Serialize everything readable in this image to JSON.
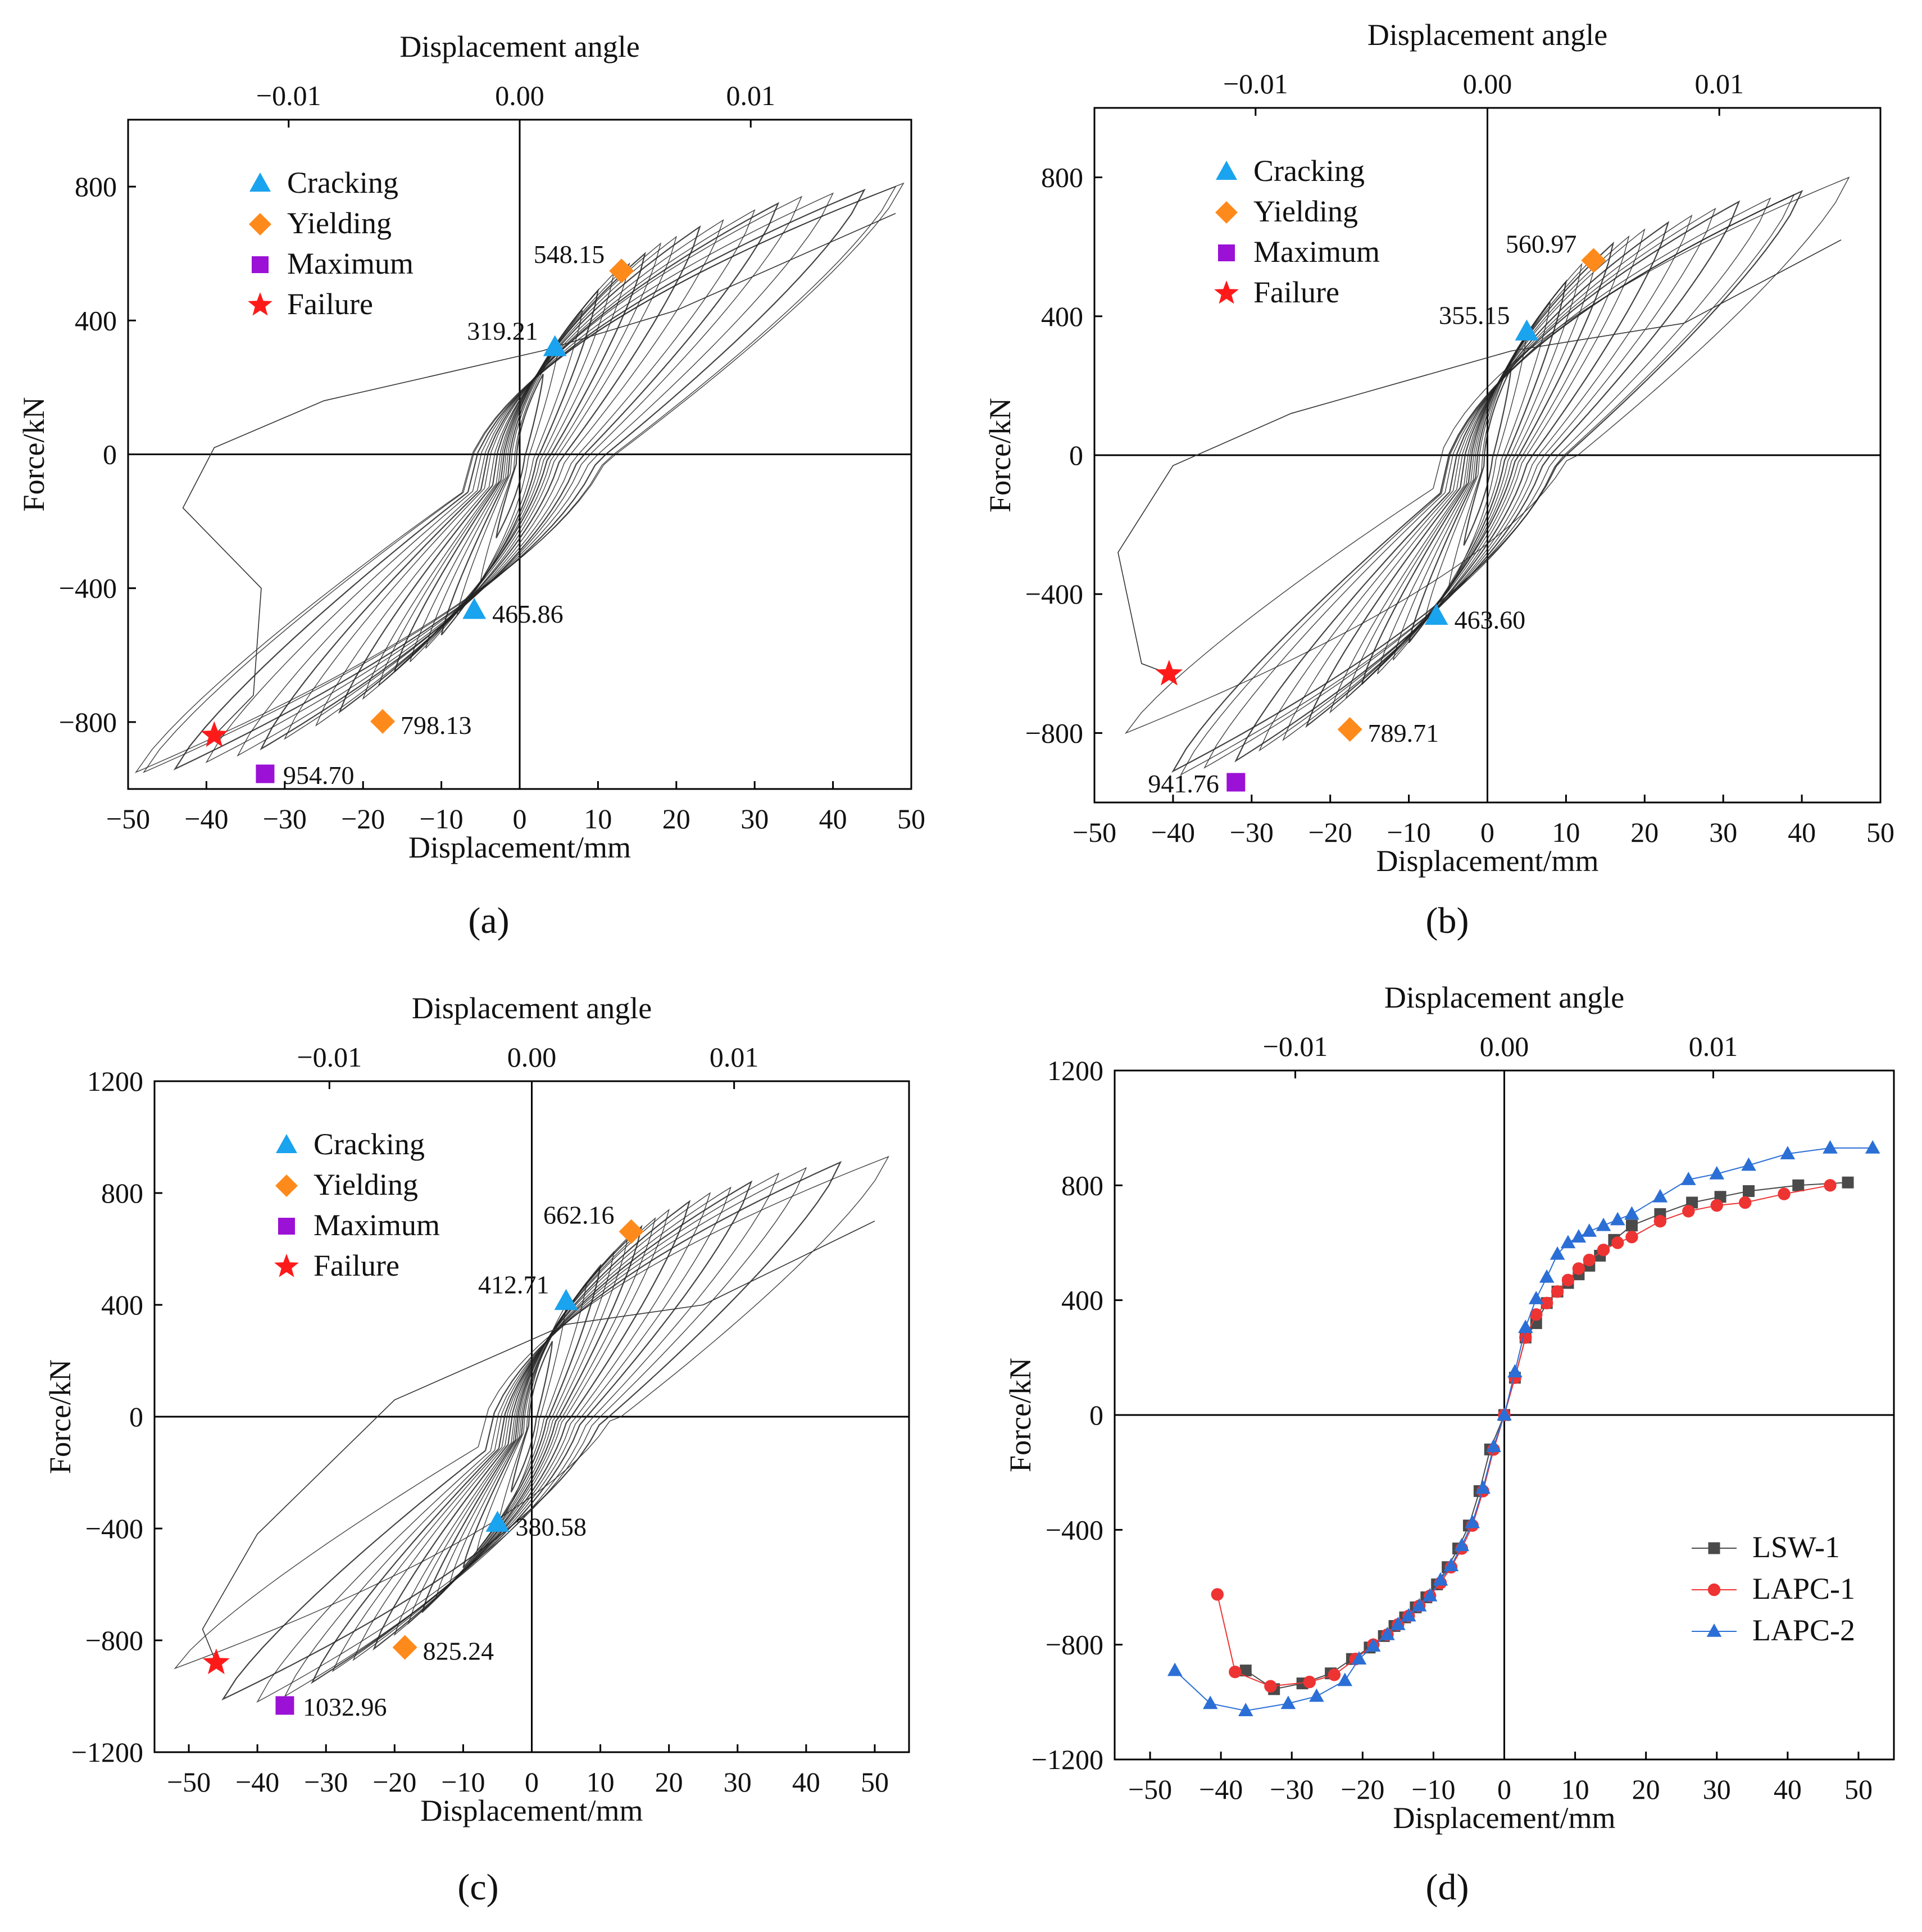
{
  "figure": {
    "panels": [
      "a",
      "b",
      "c",
      "d"
    ]
  },
  "chart_data": [
    {
      "id": "a",
      "type": "line",
      "caption": "(a)",
      "xlabel": "Displacement/mm",
      "ylabel": "Force/kN",
      "top_axis_label": "Displacement angle",
      "top_ticks": [
        "−0.01",
        "0.00",
        "0.01"
      ],
      "top_tick_values": [
        -0.01,
        0.0,
        0.01
      ],
      "xlim": [
        -50,
        50
      ],
      "ylim": [
        -1000,
        1000
      ],
      "xticks": [
        -50,
        -40,
        -30,
        -20,
        -10,
        0,
        10,
        20,
        30,
        40,
        50
      ],
      "yticks": [
        -800,
        -400,
        0,
        400,
        800
      ],
      "xtick_labels": [
        "−50",
        "−40",
        "−30",
        "−20",
        "−10",
        "0",
        "10",
        "20",
        "30",
        "40",
        "50"
      ],
      "ytick_labels": [
        "−800",
        "−400",
        "0",
        "400",
        "800"
      ],
      "legend": [
        "Cracking",
        "Yielding",
        "Maximum",
        "Failure"
      ],
      "loops": [
        {
          "d": 3,
          "fp": 240,
          "fn": 250
        },
        {
          "d": 5,
          "fp": 330,
          "fn": 380
        },
        {
          "d": 8,
          "fp": 430,
          "fn": 480
        },
        {
          "d": 10,
          "fp": 490,
          "fn": 540
        },
        {
          "d": 12,
          "fp": 540,
          "fn": 580
        },
        {
          "d": 14,
          "fp": 570,
          "fn": 620
        },
        {
          "d": 16,
          "fp": 600,
          "fn": 650
        },
        {
          "d": 18,
          "fp": 630,
          "fn": 690
        },
        {
          "d": 20,
          "fp": 650,
          "fn": 730
        },
        {
          "d": 23,
          "fp": 680,
          "fn": 770
        },
        {
          "d": 26,
          "fp": 700,
          "fn": 810
        },
        {
          "d": 30,
          "fp": 730,
          "fn": 850
        },
        {
          "d": 33,
          "fp": 750,
          "fn": 880
        },
        {
          "d": 36,
          "fp": 770,
          "fn": 900
        },
        {
          "d": 40,
          "fp": 780,
          "fn": 920
        },
        {
          "d": 44,
          "fp": 790,
          "fn": 940
        },
        {
          "d": 48,
          "fp": 800,
          "fn": 950
        },
        {
          "d": 49,
          "fp": 810,
          "fn": 950
        }
      ],
      "final_branch": [
        [
          48,
          720
        ],
        [
          20,
          430
        ],
        [
          3,
          310
        ],
        [
          -25,
          160
        ],
        [
          -39,
          20
        ],
        [
          -43,
          -160
        ],
        [
          -33,
          -400
        ],
        [
          -34,
          -720
        ],
        [
          -39,
          -840
        ]
      ],
      "markers": [
        {
          "kind": "cracking",
          "x": 4.5,
          "y": 319.21,
          "label": "319.21",
          "anchor": "end"
        },
        {
          "kind": "yielding",
          "x": 13,
          "y": 548.15,
          "label": "548.15",
          "anchor": "end"
        },
        {
          "kind": "cracking",
          "x": -5.8,
          "y": -465.86,
          "label": "465.86",
          "anchor": "start"
        },
        {
          "kind": "yielding",
          "x": -17.5,
          "y": -798.13,
          "label": "798.13",
          "anchor": "start"
        },
        {
          "kind": "maximum",
          "x": -32.5,
          "y": -954.7,
          "label": "954.70",
          "anchor": "start"
        },
        {
          "kind": "failure",
          "x": -39,
          "y": -840,
          "label": "",
          "anchor": "start"
        }
      ]
    },
    {
      "id": "b",
      "type": "line",
      "caption": "(b)",
      "xlabel": "Displacement/mm",
      "ylabel": "Force/kN",
      "top_axis_label": "Displacement angle",
      "top_ticks": [
        "−0.01",
        "0.00",
        "0.01"
      ],
      "top_tick_values": [
        -0.01,
        0.0,
        0.01
      ],
      "xlim": [
        -50,
        50
      ],
      "ylim": [
        -1000,
        1000
      ],
      "xticks": [
        -50,
        -40,
        -30,
        -20,
        -10,
        0,
        10,
        20,
        30,
        40,
        50
      ],
      "yticks": [
        -800,
        -400,
        0,
        400,
        800
      ],
      "xtick_labels": [
        "−50",
        "−40",
        "−30",
        "−20",
        "−10",
        "0",
        "10",
        "20",
        "30",
        "40",
        "50"
      ],
      "ytick_labels": [
        "−800",
        "−400",
        "0",
        "400",
        "800"
      ],
      "legend": [
        "Cracking",
        "Yielding",
        "Maximum",
        "Failure"
      ],
      "loops": [
        {
          "d": 3,
          "fp": 250,
          "fn": 260
        },
        {
          "d": 5,
          "fp": 350,
          "fn": 390
        },
        {
          "d": 8,
          "fp": 440,
          "fn": 480
        },
        {
          "d": 10,
          "fp": 500,
          "fn": 540
        },
        {
          "d": 12,
          "fp": 550,
          "fn": 590
        },
        {
          "d": 14,
          "fp": 580,
          "fn": 630
        },
        {
          "d": 16,
          "fp": 610,
          "fn": 660
        },
        {
          "d": 18,
          "fp": 630,
          "fn": 700
        },
        {
          "d": 20,
          "fp": 650,
          "fn": 740
        },
        {
          "d": 23,
          "fp": 670,
          "fn": 780
        },
        {
          "d": 26,
          "fp": 690,
          "fn": 820
        },
        {
          "d": 29,
          "fp": 710,
          "fn": 850
        },
        {
          "d": 32,
          "fp": 730,
          "fn": 880
        },
        {
          "d": 36,
          "fp": 740,
          "fn": 900
        },
        {
          "d": 39,
          "fp": 750,
          "fn": 920
        },
        {
          "d": 40,
          "fp": 760,
          "fn": 910
        },
        {
          "d": 46,
          "fp": 800,
          "fn": 800
        }
      ],
      "final_branch": [
        [
          45,
          620
        ],
        [
          25,
          380
        ],
        [
          3,
          300
        ],
        [
          -25,
          120
        ],
        [
          -40,
          -30
        ],
        [
          -47,
          -280
        ],
        [
          -44,
          -600
        ],
        [
          -40.5,
          -630
        ]
      ],
      "markers": [
        {
          "kind": "cracking",
          "x": 5,
          "y": 355.15,
          "label": "355.15",
          "anchor": "end"
        },
        {
          "kind": "yielding",
          "x": 13.5,
          "y": 560.97,
          "label": "560.97",
          "anchor": "end"
        },
        {
          "kind": "cracking",
          "x": -6.5,
          "y": -463.6,
          "label": "463.60",
          "anchor": "start"
        },
        {
          "kind": "yielding",
          "x": -17.5,
          "y": -789.71,
          "label": "789.71",
          "anchor": "start"
        },
        {
          "kind": "maximum",
          "x": -32,
          "y": -941.76,
          "label": "941.76",
          "anchor": "end"
        },
        {
          "kind": "failure",
          "x": -40.5,
          "y": -630,
          "label": "",
          "anchor": "start"
        }
      ]
    },
    {
      "id": "c",
      "type": "line",
      "caption": "(c)",
      "xlabel": "Displacement/mm",
      "ylabel": "Force/kN",
      "top_axis_label": "Displacement angle",
      "top_ticks": [
        "−0.01",
        "0.00",
        "0.01"
      ],
      "top_tick_values": [
        -0.01,
        0.0,
        0.01
      ],
      "xlim": [
        -55,
        55
      ],
      "ylim": [
        -1200,
        1200
      ],
      "xticks": [
        -50,
        -40,
        -30,
        -20,
        -10,
        0,
        10,
        20,
        30,
        40,
        50
      ],
      "yticks": [
        -1200,
        -800,
        -400,
        0,
        400,
        800,
        1200
      ],
      "xtick_labels": [
        "−50",
        "−40",
        "−30",
        "−20",
        "−10",
        "0",
        "10",
        "20",
        "30",
        "40",
        "50"
      ],
      "ytick_labels": [
        "−1200",
        "−800",
        "−400",
        "0",
        "400",
        "800",
        "1200"
      ],
      "legend": [
        "Cracking",
        "Yielding",
        "Maximum",
        "Failure"
      ],
      "loops": [
        {
          "d": 3,
          "fp": 270,
          "fn": 270
        },
        {
          "d": 5,
          "fp": 400,
          "fn": 400
        },
        {
          "d": 8,
          "fp": 480,
          "fn": 480
        },
        {
          "d": 10,
          "fp": 540,
          "fn": 540
        },
        {
          "d": 12,
          "fp": 590,
          "fn": 600
        },
        {
          "d": 14,
          "fp": 640,
          "fn": 650
        },
        {
          "d": 16,
          "fp": 680,
          "fn": 700
        },
        {
          "d": 18,
          "fp": 710,
          "fn": 740
        },
        {
          "d": 20,
          "fp": 740,
          "fn": 780
        },
        {
          "d": 23,
          "fp": 770,
          "fn": 830
        },
        {
          "d": 26,
          "fp": 800,
          "fn": 870
        },
        {
          "d": 29,
          "fp": 820,
          "fn": 910
        },
        {
          "d": 32,
          "fp": 840,
          "fn": 950
        },
        {
          "d": 36,
          "fp": 870,
          "fn": 1000
        },
        {
          "d": 40,
          "fp": 890,
          "fn": 1020
        },
        {
          "d": 45,
          "fp": 910,
          "fn": 1010
        },
        {
          "d": 52,
          "fp": 930,
          "fn": 900
        }
      ],
      "final_branch": [
        [
          50,
          700
        ],
        [
          25,
          400
        ],
        [
          5,
          330
        ],
        [
          -20,
          60
        ],
        [
          -40,
          -420
        ],
        [
          -48,
          -760
        ],
        [
          -46,
          -880
        ]
      ],
      "markers": [
        {
          "kind": "cracking",
          "x": 5,
          "y": 412.71,
          "label": "412.71",
          "anchor": "end"
        },
        {
          "kind": "yielding",
          "x": 14.5,
          "y": 662.16,
          "label": "662.16",
          "anchor": "end"
        },
        {
          "kind": "cracking",
          "x": -5,
          "y": -380.58,
          "label": "380.58",
          "anchor": "start"
        },
        {
          "kind": "yielding",
          "x": -18.5,
          "y": -825.24,
          "label": "825.24",
          "anchor": "start"
        },
        {
          "kind": "maximum",
          "x": -36,
          "y": -1032.96,
          "label": "1032.96",
          "anchor": "start"
        },
        {
          "kind": "failure",
          "x": -46,
          "y": -880,
          "label": "",
          "anchor": "start"
        }
      ]
    },
    {
      "id": "d",
      "type": "line",
      "caption": "(d)",
      "xlabel": "Displacement/mm",
      "ylabel": "Force/kN",
      "top_axis_label": "Displacement angle",
      "top_ticks": [
        "−0.01",
        "0.00",
        "0.01"
      ],
      "top_tick_values": [
        -0.01,
        0.0,
        0.01
      ],
      "xlim": [
        -55,
        55
      ],
      "ylim": [
        -1200,
        1200
      ],
      "xticks": [
        -50,
        -40,
        -30,
        -20,
        -10,
        0,
        10,
        20,
        30,
        40,
        50
      ],
      "yticks": [
        -1200,
        -800,
        -400,
        0,
        400,
        800,
        1200
      ],
      "xtick_labels": [
        "−50",
        "−40",
        "−30",
        "−20",
        "−10",
        "0",
        "10",
        "20",
        "30",
        "40",
        "50"
      ],
      "ytick_labels": [
        "−1200",
        "−800",
        "−400",
        "0",
        "400",
        "800",
        "1200"
      ],
      "legend_position": "bottom-right",
      "series": [
        {
          "name": "LSW-1",
          "color": "#4a4a4a",
          "marker": "square",
          "x": [
            -36.5,
            -32.5,
            -28.5,
            -24.5,
            -21.5,
            -19,
            -17,
            -15.5,
            -14,
            -12.5,
            -11,
            -9.5,
            -8,
            -6.5,
            -5,
            -3.5,
            -2,
            0,
            1.5,
            3,
            4.5,
            6,
            7.5,
            9,
            10.5,
            12,
            13.5,
            15.5,
            18,
            22,
            26.5,
            30.5,
            34.5,
            41.5,
            48.5
          ],
          "y": [
            -890,
            -955,
            -935,
            -900,
            -850,
            -810,
            -770,
            -735,
            -705,
            -670,
            -635,
            -590,
            -530,
            -465,
            -385,
            -265,
            -120,
            0,
            130,
            270,
            320,
            390,
            430,
            460,
            490,
            520,
            555,
            610,
            660,
            700,
            740,
            760,
            780,
            800,
            810
          ]
        },
        {
          "name": "LAPC-1",
          "color": "#ee3333",
          "marker": "circle",
          "x": [
            -40.5,
            -38,
            -33,
            -27.5,
            -24,
            -21,
            -18.5,
            -16.5,
            -15,
            -13.5,
            -12,
            -10.5,
            -9,
            -7.5,
            -6,
            -4.5,
            -3,
            -1.5,
            0,
            1.5,
            3,
            4.5,
            6,
            7.5,
            9,
            10.5,
            12,
            14,
            16,
            18,
            22,
            26,
            30,
            34,
            39.5,
            46
          ],
          "y": [
            -625,
            -895,
            -945,
            -930,
            -905,
            -850,
            -800,
            -765,
            -730,
            -700,
            -665,
            -630,
            -585,
            -530,
            -465,
            -385,
            -265,
            -120,
            0,
            130,
            270,
            350,
            390,
            430,
            470,
            510,
            540,
            575,
            600,
            620,
            675,
            710,
            730,
            740,
            770,
            800
          ]
        },
        {
          "name": "LAPC-2",
          "color": "#2b6fd6",
          "marker": "triangle",
          "x": [
            -46.5,
            -41.5,
            -36.5,
            -30.5,
            -26.5,
            -22.5,
            -20.5,
            -18.5,
            -16.5,
            -15,
            -13.5,
            -12,
            -10.5,
            -9,
            -7.5,
            -6,
            -4.5,
            -3,
            -1.5,
            0,
            1.5,
            3,
            4.5,
            6,
            7.5,
            9,
            10.5,
            12,
            14,
            16,
            18,
            22,
            26,
            30,
            34.5,
            40,
            46,
            52
          ],
          "y": [
            -890,
            -1005,
            -1030,
            -1005,
            -980,
            -925,
            -850,
            -805,
            -765,
            -730,
            -700,
            -665,
            -630,
            -575,
            -525,
            -455,
            -375,
            -255,
            -110,
            0,
            150,
            305,
            405,
            480,
            560,
            600,
            620,
            640,
            660,
            680,
            700,
            760,
            820,
            840,
            870,
            910,
            930,
            930
          ]
        }
      ]
    }
  ]
}
